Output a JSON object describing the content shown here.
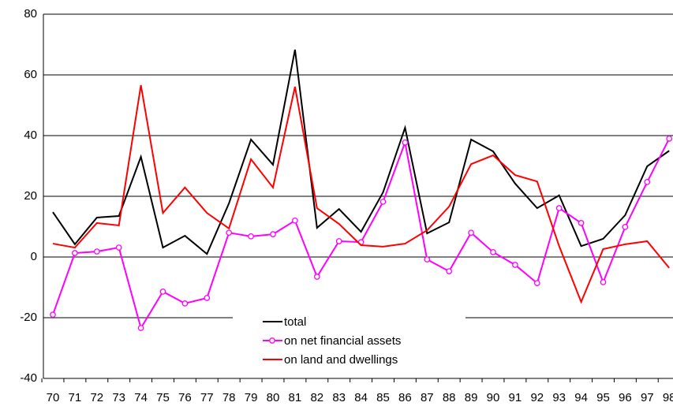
{
  "chart_data": {
    "type": "line",
    "categories": [
      "70",
      "71",
      "72",
      "73",
      "74",
      "75",
      "76",
      "77",
      "78",
      "79",
      "80",
      "81",
      "82",
      "83",
      "84",
      "85",
      "86",
      "87",
      "88",
      "89",
      "90",
      "91",
      "92",
      "93",
      "94",
      "95",
      "96",
      "97",
      "98"
    ],
    "series": [
      {
        "name": "total",
        "color": "#000000",
        "marker": false,
        "values": [
          14.8,
          4.2,
          13,
          13.5,
          33,
          3.1,
          7,
          1,
          17.7,
          38.7,
          30.4,
          68.3,
          9.6,
          15.8,
          8.3,
          21.3,
          42.6,
          7.8,
          11.4,
          38.7,
          34.8,
          24.2,
          16.1,
          20.3,
          3.6,
          6,
          13.8,
          29.9,
          35
        ]
      },
      {
        "name": "on net financial assets",
        "color": "#ff00ff",
        "marker": true,
        "values": [
          -19,
          1.3,
          1.8,
          3.1,
          -23.4,
          -11.4,
          -15.3,
          -13.5,
          8,
          6.8,
          7.5,
          12,
          -6.5,
          5.2,
          4.9,
          18.2,
          37.7,
          -0.8,
          -4.7,
          8,
          1.6,
          -2.6,
          -8.6,
          16.1,
          11.2,
          -8.3,
          9.9,
          24.7,
          39
        ]
      },
      {
        "name": "on land and dwellings",
        "color": "#ff0000",
        "marker": false,
        "values": [
          4.4,
          3.1,
          11.2,
          10.4,
          56.6,
          14.5,
          22.9,
          14.5,
          9.4,
          32.2,
          22.9,
          56.1,
          16.1,
          10.9,
          3.9,
          3.4,
          4.4,
          8.8,
          16.6,
          30.6,
          33.5,
          27,
          24.9,
          3.6,
          -14.8,
          2.6,
          4.2,
          5.2,
          -3.6
        ]
      }
    ],
    "ylim": [
      -40,
      80
    ],
    "yticks": [
      -40,
      -20,
      0,
      20,
      40,
      60,
      80
    ],
    "grid": true
  }
}
